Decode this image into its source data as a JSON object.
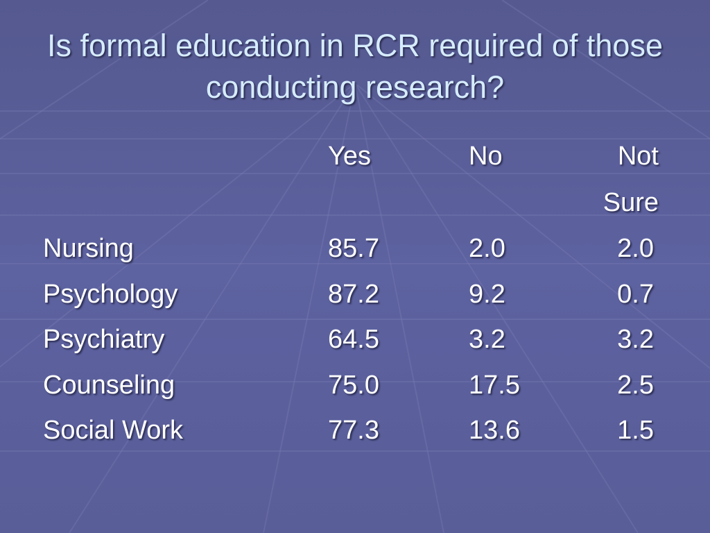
{
  "title": "Is formal education in RCR required of those conducting research?",
  "table": {
    "columns": [
      "Yes",
      "No",
      "Not Sure"
    ],
    "rows": [
      {
        "label": "Nursing",
        "cells": [
          "85.7",
          "2.0",
          "2.0"
        ]
      },
      {
        "label": "Psychology",
        "cells": [
          "87.2",
          "9.2",
          "0.7"
        ]
      },
      {
        "label": "Psychiatry",
        "cells": [
          "64.5",
          "3.2",
          "3.2"
        ]
      },
      {
        "label": "Counseling",
        "cells": [
          "75.0",
          "17.5",
          "2.5"
        ]
      },
      {
        "label": "Social Work",
        "cells": [
          "77.3",
          "13.6",
          "1.5"
        ]
      }
    ]
  }
}
